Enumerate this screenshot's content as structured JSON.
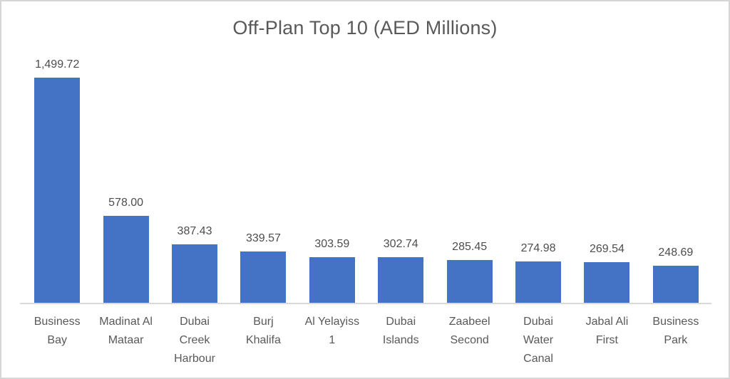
{
  "chart_data": {
    "type": "bar",
    "title": "Off-Plan Top 10 (AED Millions)",
    "categories": [
      "Business Bay",
      "Madinat Al Mataar",
      "Dubai Creek Harbour",
      "Burj Khalifa",
      "Al Yelayiss 1",
      "Dubai Islands",
      "Zaabeel Second",
      "Dubai Water Canal",
      "Jabal Ali First",
      "Business Park"
    ],
    "category_display": [
      "Business\nBay",
      "Madinat Al\nMataar",
      "Dubai\nCreek\nHarbour",
      "Burj\nKhalifa",
      "Al Yelayiss\n1",
      "Dubai\nIslands",
      "Zaabeel\nSecond",
      "Dubai\nWater\nCanal",
      "Jabal Ali\nFirst",
      "Business\nPark"
    ],
    "values": [
      1499.72,
      578.0,
      387.43,
      339.57,
      303.59,
      302.74,
      285.45,
      274.98,
      269.54,
      248.69
    ],
    "value_labels": [
      "1,499.72",
      "578.00",
      "387.43",
      "339.57",
      "303.59",
      "302.74",
      "285.45",
      "274.98",
      "269.54",
      "248.69"
    ],
    "xlabel": "",
    "ylabel": "",
    "ylim": [
      0,
      1600
    ],
    "grid": false,
    "legend": "none",
    "data_labels_position": "above-bar",
    "colors": {
      "bar": "#4472c4",
      "axis_line": "#d9d9d9",
      "title_text": "#595959",
      "value_label_text": "#4d4d4d",
      "category_text": "#595959",
      "frame_border": "#d6d6d6",
      "background": "#ffffff"
    }
  }
}
